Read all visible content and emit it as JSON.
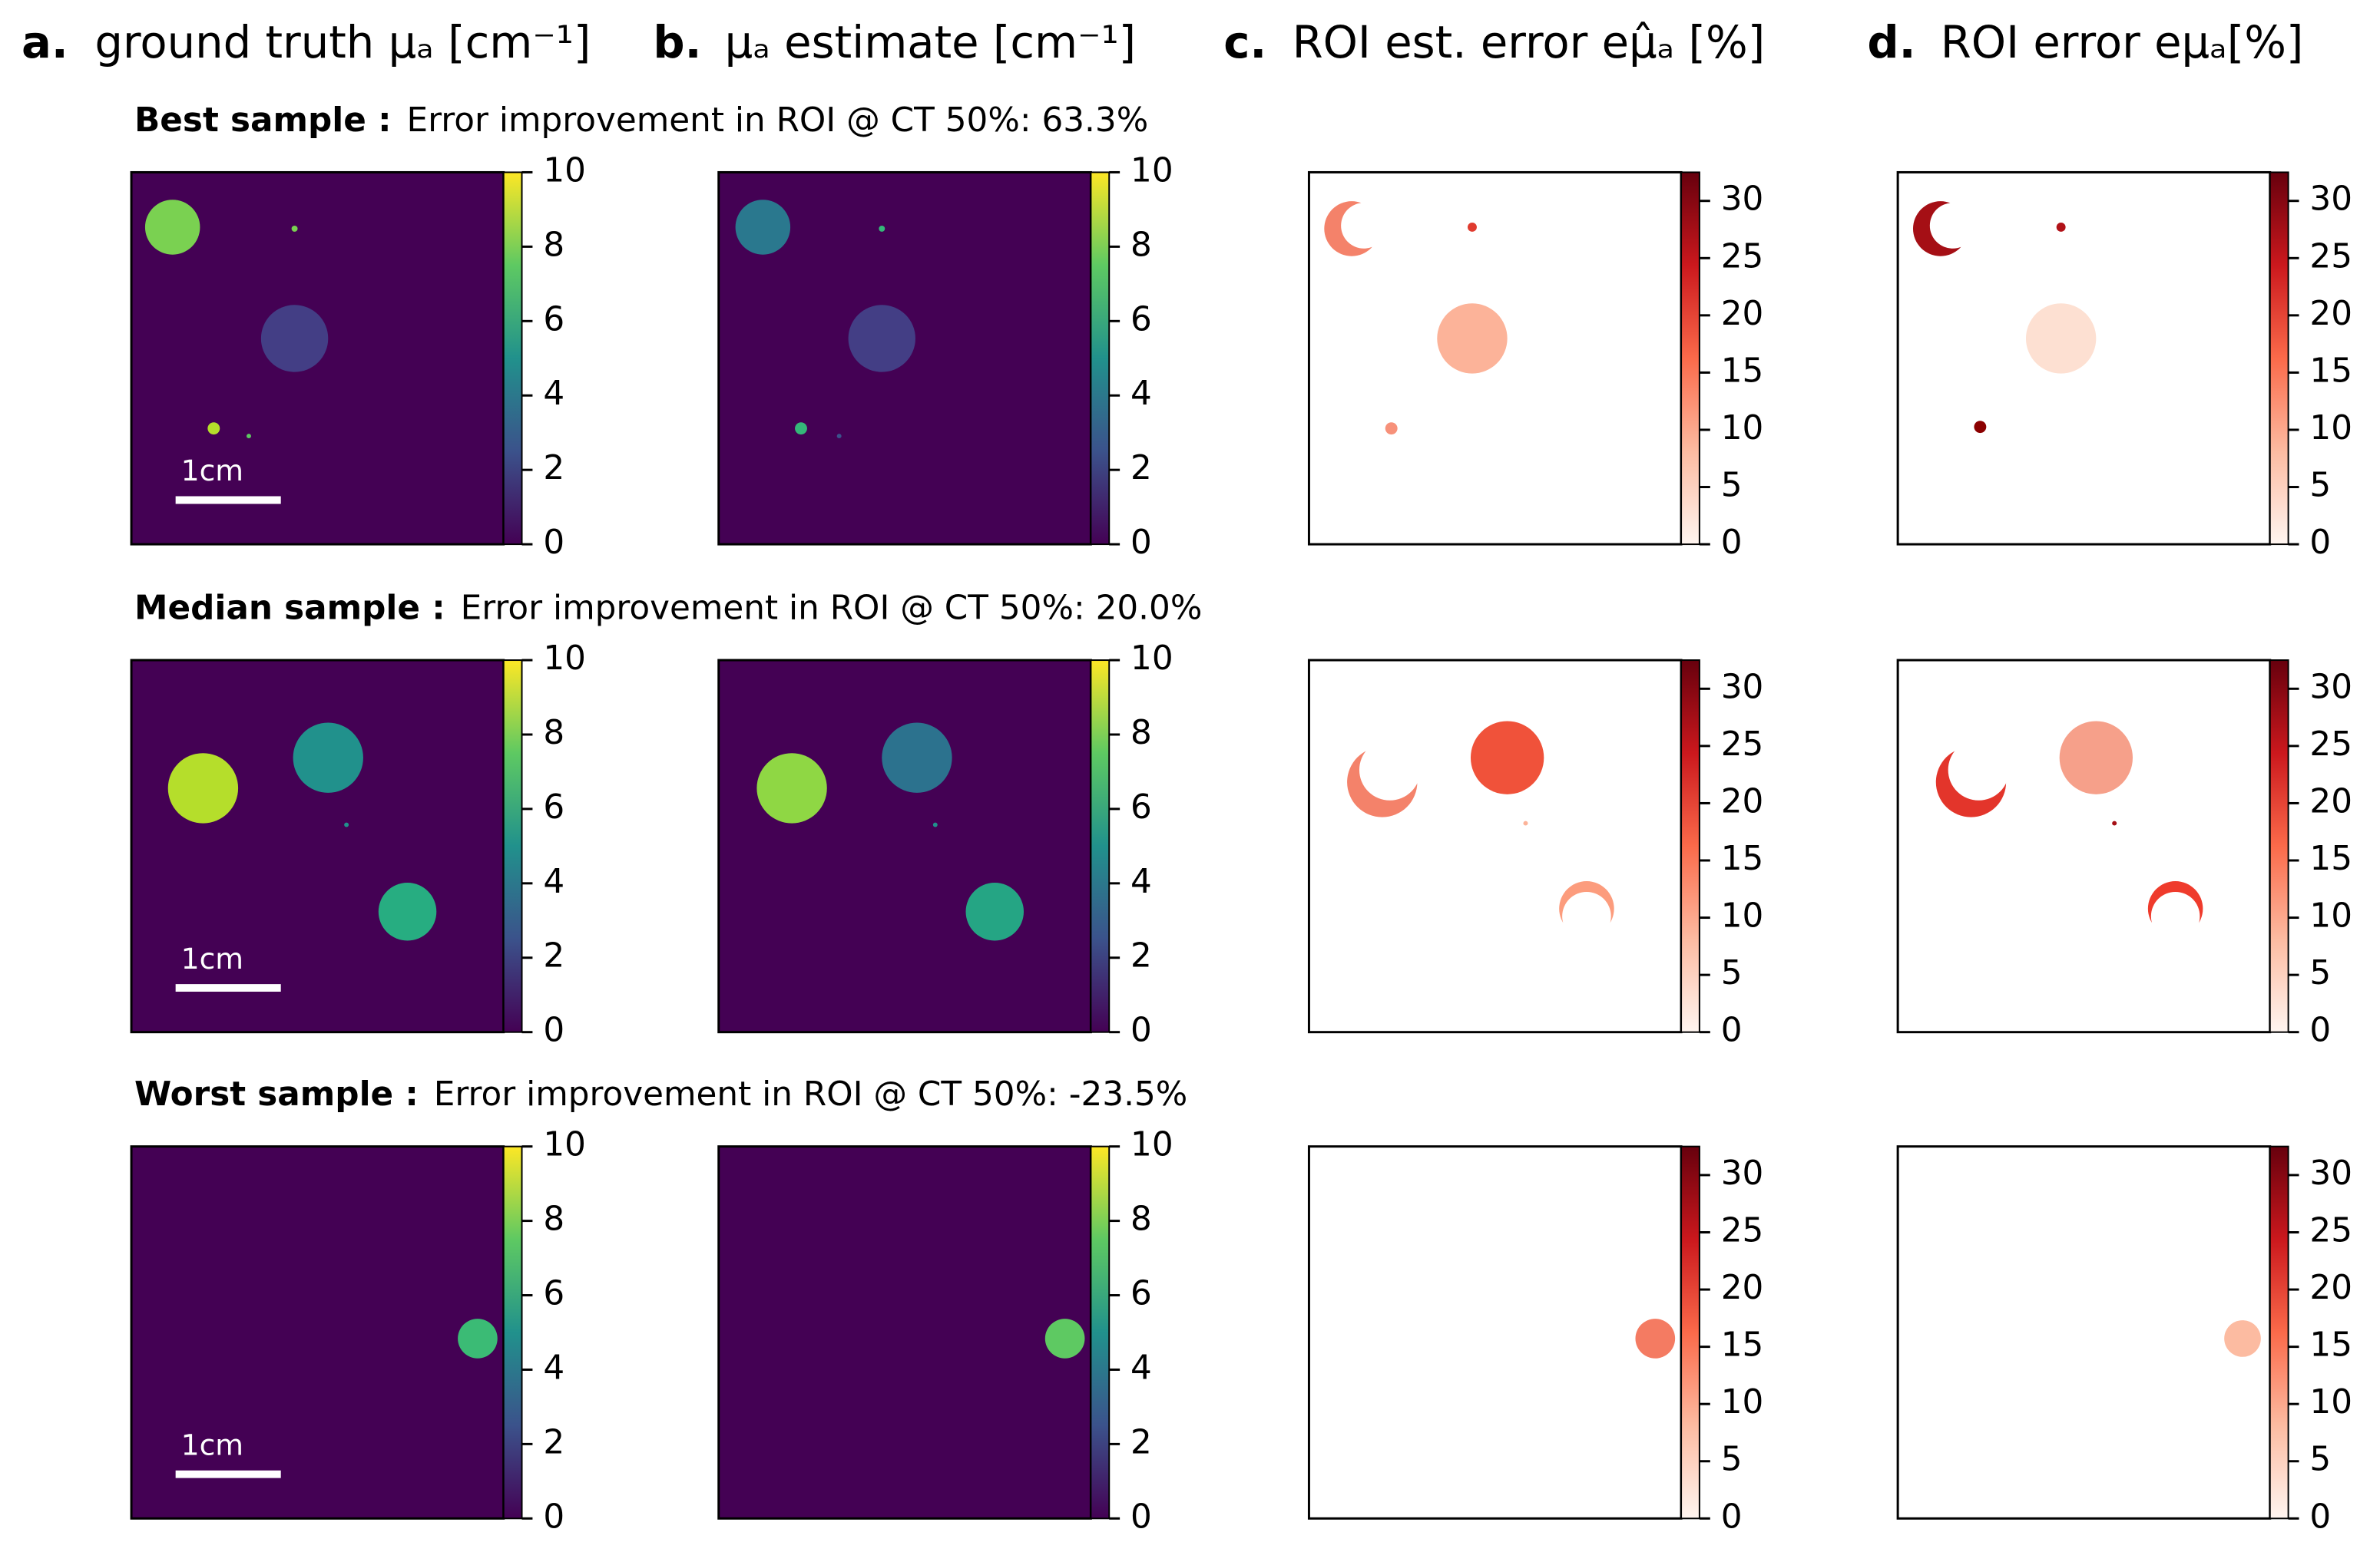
{
  "columns": [
    {
      "letter": "a.",
      "title": "ground truth μₐ [cm⁻¹]"
    },
    {
      "letter": "b.",
      "title": "μₐ estimate [cm⁻¹]"
    },
    {
      "letter": "c.",
      "title": "ROI est. error eμ̂ₐ [%]"
    },
    {
      "letter": "d.",
      "title": "ROI error eμₐ[%]"
    }
  ],
  "rows": [
    {
      "label": "Best sample :",
      "text": "Error improvement in ROI @ CT 50%: 63.3%"
    },
    {
      "label": "Median sample :",
      "text": "Error improvement in ROI @ CT 50%: 20.0%"
    },
    {
      "label": "Worst sample :",
      "text": "Error improvement in ROI @ CT 50%: -23.5%"
    }
  ],
  "scale_bar": "1cm",
  "colorbars": {
    "mu": {
      "lim": [
        0,
        10
      ],
      "ticks": [
        0,
        2,
        4,
        6,
        8,
        10
      ]
    },
    "error": {
      "lim": [
        0,
        32.5
      ],
      "ticks": [
        0,
        5,
        10,
        15,
        20,
        25,
        30
      ]
    }
  }
}
